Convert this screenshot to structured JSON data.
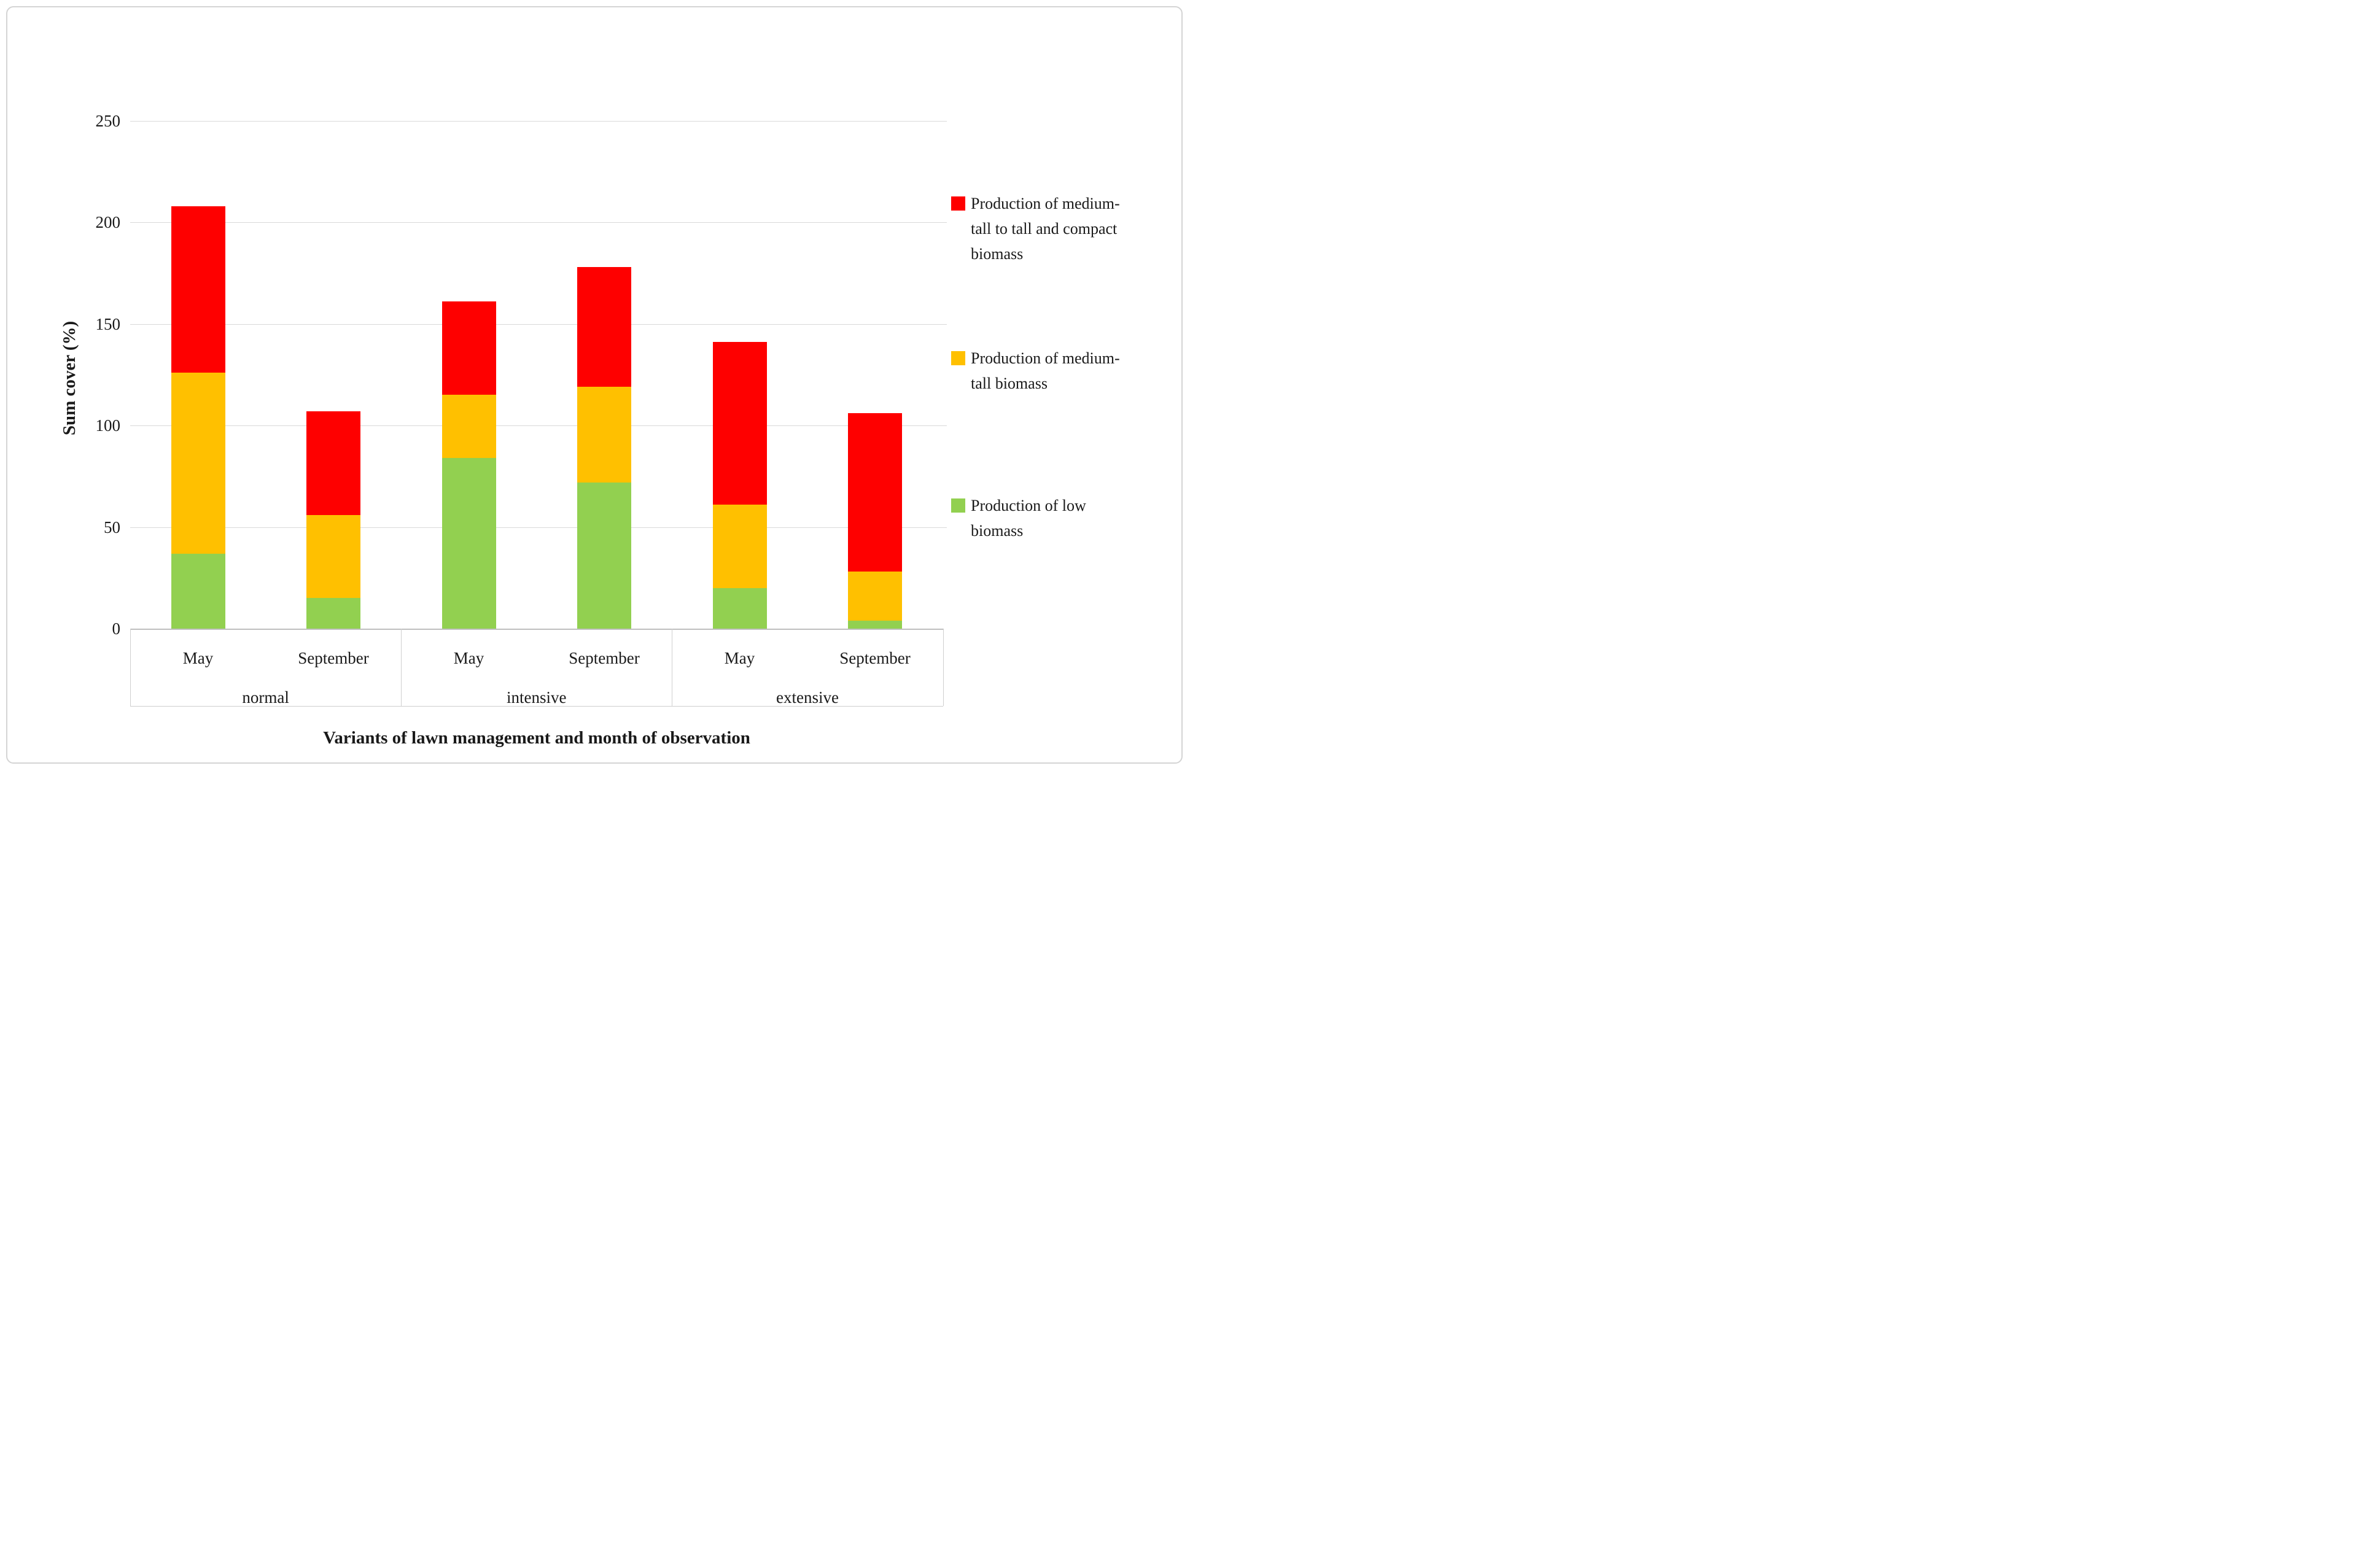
{
  "figure": {
    "background": "#ffffff",
    "border_color": "#d4d4d4"
  },
  "y_axis": {
    "title": "Sum cover (%)",
    "ticks": [
      "0",
      "50",
      "100",
      "150",
      "200",
      "250"
    ],
    "max": 250,
    "gridline_color": "#d9d9d9"
  },
  "x_axis": {
    "title": "Variants of lawn management and month of observation",
    "groups": [
      {
        "label": "normal",
        "months": [
          "May",
          "September"
        ]
      },
      {
        "label": "intensive",
        "months": [
          "May",
          "September"
        ]
      },
      {
        "label": "extensive",
        "months": [
          "May",
          "September"
        ]
      }
    ]
  },
  "legend": [
    {
      "name": "red-series",
      "color": "#fe0000",
      "lines": [
        "Production of medium-",
        "tall to tall and compact",
        "biomass"
      ],
      "label": "Production of medium-tall to tall and compact biomass"
    },
    {
      "name": "yellow-series",
      "color": "#ffc000",
      "lines": [
        "Production of medium-",
        "tall biomass"
      ],
      "label": "Production of medium-tall biomass"
    },
    {
      "name": "green-series",
      "color": "#92d050",
      "lines": [
        "Production of low",
        "biomass"
      ],
      "label": "Production of low biomass"
    }
  ],
  "chart_data": {
    "type": "bar",
    "stacked": true,
    "title": "",
    "xlabel": "Variants of lawn management and month of observation",
    "ylabel": "Sum cover (%)",
    "ylim": [
      0,
      250
    ],
    "grid": true,
    "legend_position": "right",
    "categories": [
      "normal May",
      "normal September",
      "intensive May",
      "intensive September",
      "extensive May",
      "extensive September"
    ],
    "series": [
      {
        "name": "Production of low biomass",
        "color": "#92d050",
        "values": [
          37,
          15,
          84,
          72,
          20,
          4
        ]
      },
      {
        "name": "Production of medium-tall biomass",
        "color": "#ffc000",
        "values": [
          89,
          41,
          31,
          47,
          41,
          24
        ]
      },
      {
        "name": "Production of medium-tall to tall and compact biomass",
        "color": "#fe0000",
        "values": [
          82,
          51,
          46,
          59,
          80,
          78
        ]
      }
    ],
    "totals": [
      208,
      107,
      161,
      178,
      141,
      106
    ]
  }
}
